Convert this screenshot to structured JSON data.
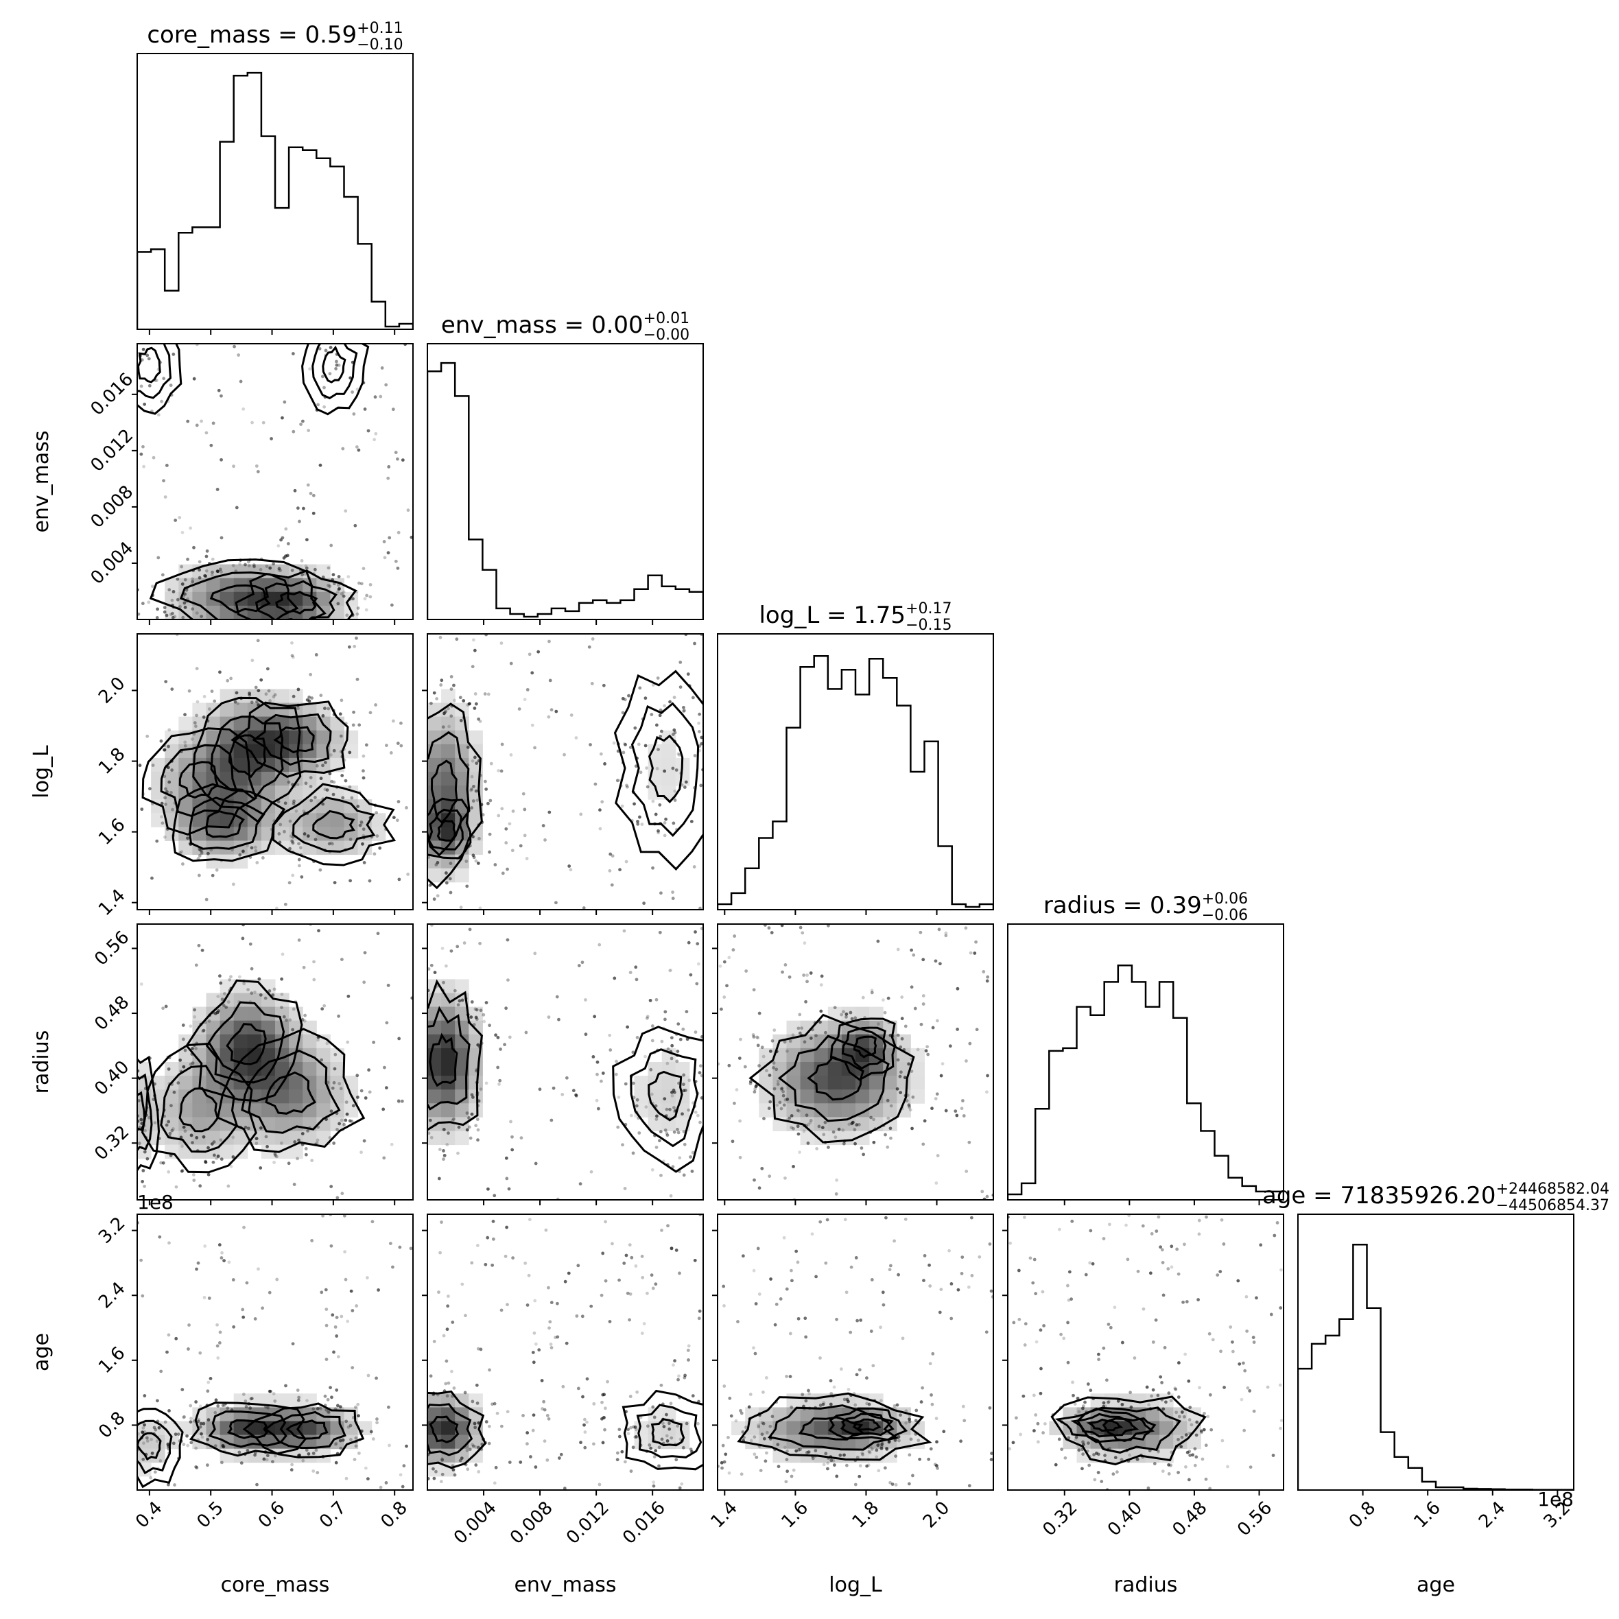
{
  "chart_data": {
    "type": "corner",
    "parameters": [
      {
        "name": "core_mass",
        "title": {
          "lead": "core_mass = ",
          "value": "0.59",
          "plus": "+0.11",
          "minus": "−0.10"
        },
        "range": [
          0.38,
          0.83
        ],
        "ticks": [
          0.4,
          0.5,
          0.6,
          0.7,
          0.8
        ],
        "tick_labels": [
          "0.4",
          "0.5",
          "0.6",
          "0.7",
          "0.8"
        ],
        "multiplier": "",
        "hist": [
          0.28,
          0.29,
          0.14,
          0.35,
          0.37,
          0.37,
          0.68,
          0.92,
          0.93,
          0.7,
          0.44,
          0.66,
          0.65,
          0.62,
          0.59,
          0.48,
          0.31,
          0.1,
          0.01,
          0.02
        ]
      },
      {
        "name": "env_mass",
        "title": {
          "lead": "env_mass = ",
          "value": "0.00",
          "plus": "+0.01",
          "minus": "−0.00"
        },
        "range": [
          0.0,
          0.0196
        ],
        "ticks": [
          0.004,
          0.008,
          0.012,
          0.016
        ],
        "tick_labels": [
          "0.004",
          "0.008",
          "0.012",
          "0.016"
        ],
        "multiplier": "",
        "hist": [
          0.9,
          0.93,
          0.81,
          0.29,
          0.18,
          0.04,
          0.02,
          0.01,
          0.02,
          0.04,
          0.03,
          0.06,
          0.07,
          0.06,
          0.07,
          0.11,
          0.16,
          0.12,
          0.11,
          0.1
        ]
      },
      {
        "name": "log_L",
        "title": {
          "lead": "log_L = ",
          "value": "1.75",
          "plus": "+0.17",
          "minus": "−0.15"
        },
        "range": [
          1.38,
          2.16
        ],
        "ticks": [
          1.4,
          1.6,
          1.8,
          2.0
        ],
        "tick_labels": [
          "1.4",
          "1.6",
          "1.8",
          "2.0"
        ],
        "multiplier": "",
        "hist": [
          0.02,
          0.06,
          0.15,
          0.26,
          0.32,
          0.66,
          0.88,
          0.92,
          0.8,
          0.87,
          0.78,
          0.91,
          0.84,
          0.74,
          0.5,
          0.61,
          0.23,
          0.02,
          0.01,
          0.02
        ]
      },
      {
        "name": "radius",
        "title": {
          "lead": "radius = ",
          "value": "0.39",
          "plus": "+0.06",
          "minus": "−0.06"
        },
        "range": [
          0.25,
          0.59
        ],
        "ticks": [
          0.32,
          0.4,
          0.48,
          0.56
        ],
        "tick_labels": [
          "0.32",
          "0.40",
          "0.48",
          "0.56"
        ],
        "multiplier": "",
        "hist": [
          0.02,
          0.06,
          0.33,
          0.54,
          0.55,
          0.7,
          0.67,
          0.79,
          0.85,
          0.79,
          0.7,
          0.79,
          0.66,
          0.35,
          0.25,
          0.16,
          0.08,
          0.05,
          0.03,
          0.03
        ]
      },
      {
        "name": "age",
        "title": {
          "lead": "age = ",
          "value": "71835926.20",
          "plus": "+24468582.04",
          "minus": "−44506854.37"
        },
        "range": [
          0.0,
          3.4
        ],
        "ticks": [
          0.8,
          1.6,
          2.4,
          3.2
        ],
        "tick_labels": [
          "0.8",
          "1.6",
          "2.4",
          "3.2"
        ],
        "multiplier": "1e8",
        "hist": [
          0.44,
          0.53,
          0.56,
          0.62,
          0.89,
          0.66,
          0.21,
          0.12,
          0.08,
          0.03,
          0.01,
          0.01,
          0.005,
          0.004,
          0.003,
          0.002,
          0.002,
          0.001,
          0.001,
          0.001
        ]
      }
    ],
    "kde_peaks": {
      "1_0": [
        [
          0.55,
          0.0015,
          0.07,
          0.0015,
          1.0
        ],
        [
          0.64,
          0.0012,
          0.05,
          0.0012,
          0.8
        ],
        [
          0.4,
          0.018,
          0.03,
          0.002,
          0.15
        ],
        [
          0.7,
          0.018,
          0.03,
          0.002,
          0.12
        ]
      ],
      "2_0": [
        [
          0.56,
          1.82,
          0.05,
          0.1,
          0.9
        ],
        [
          0.52,
          1.62,
          0.05,
          0.06,
          0.8
        ],
        [
          0.64,
          1.86,
          0.05,
          0.06,
          0.8
        ],
        [
          0.7,
          1.62,
          0.05,
          0.06,
          0.6
        ],
        [
          0.48,
          1.75,
          0.05,
          0.08,
          0.5
        ]
      ],
      "2_1": [
        [
          0.0012,
          1.72,
          0.0015,
          0.14,
          1.0
        ],
        [
          0.0014,
          1.6,
          0.001,
          0.05,
          0.7
        ],
        [
          0.017,
          1.78,
          0.002,
          0.15,
          0.2
        ]
      ],
      "3_0": [
        [
          0.56,
          0.44,
          0.05,
          0.04,
          1.0
        ],
        [
          0.63,
          0.38,
          0.06,
          0.04,
          0.7
        ],
        [
          0.48,
          0.36,
          0.05,
          0.04,
          0.5
        ],
        [
          0.38,
          0.36,
          0.02,
          0.04,
          0.3
        ]
      ],
      "3_1": [
        [
          0.0012,
          0.42,
          0.0015,
          0.05,
          1.0
        ],
        [
          0.017,
          0.38,
          0.002,
          0.05,
          0.2
        ]
      ],
      "3_2": [
        [
          1.72,
          0.4,
          0.12,
          0.04,
          1.0
        ],
        [
          1.8,
          0.44,
          0.05,
          0.02,
          0.6
        ]
      ],
      "4_0": [
        [
          0.56,
          0.75,
          0.05,
          0.18,
          1.0
        ],
        [
          0.66,
          0.75,
          0.05,
          0.18,
          0.9
        ],
        [
          0.4,
          0.55,
          0.03,
          0.25,
          0.3
        ]
      ],
      "4_1": [
        [
          0.0012,
          0.75,
          0.0015,
          0.25,
          1.0
        ],
        [
          0.017,
          0.7,
          0.002,
          0.25,
          0.2
        ]
      ],
      "4_2": [
        [
          1.7,
          0.75,
          0.14,
          0.22,
          1.0
        ],
        [
          1.8,
          0.8,
          0.06,
          0.1,
          0.6
        ]
      ],
      "4_3": [
        [
          0.4,
          0.75,
          0.05,
          0.22,
          1.0
        ],
        [
          0.37,
          0.8,
          0.03,
          0.1,
          0.6
        ]
      ]
    }
  }
}
